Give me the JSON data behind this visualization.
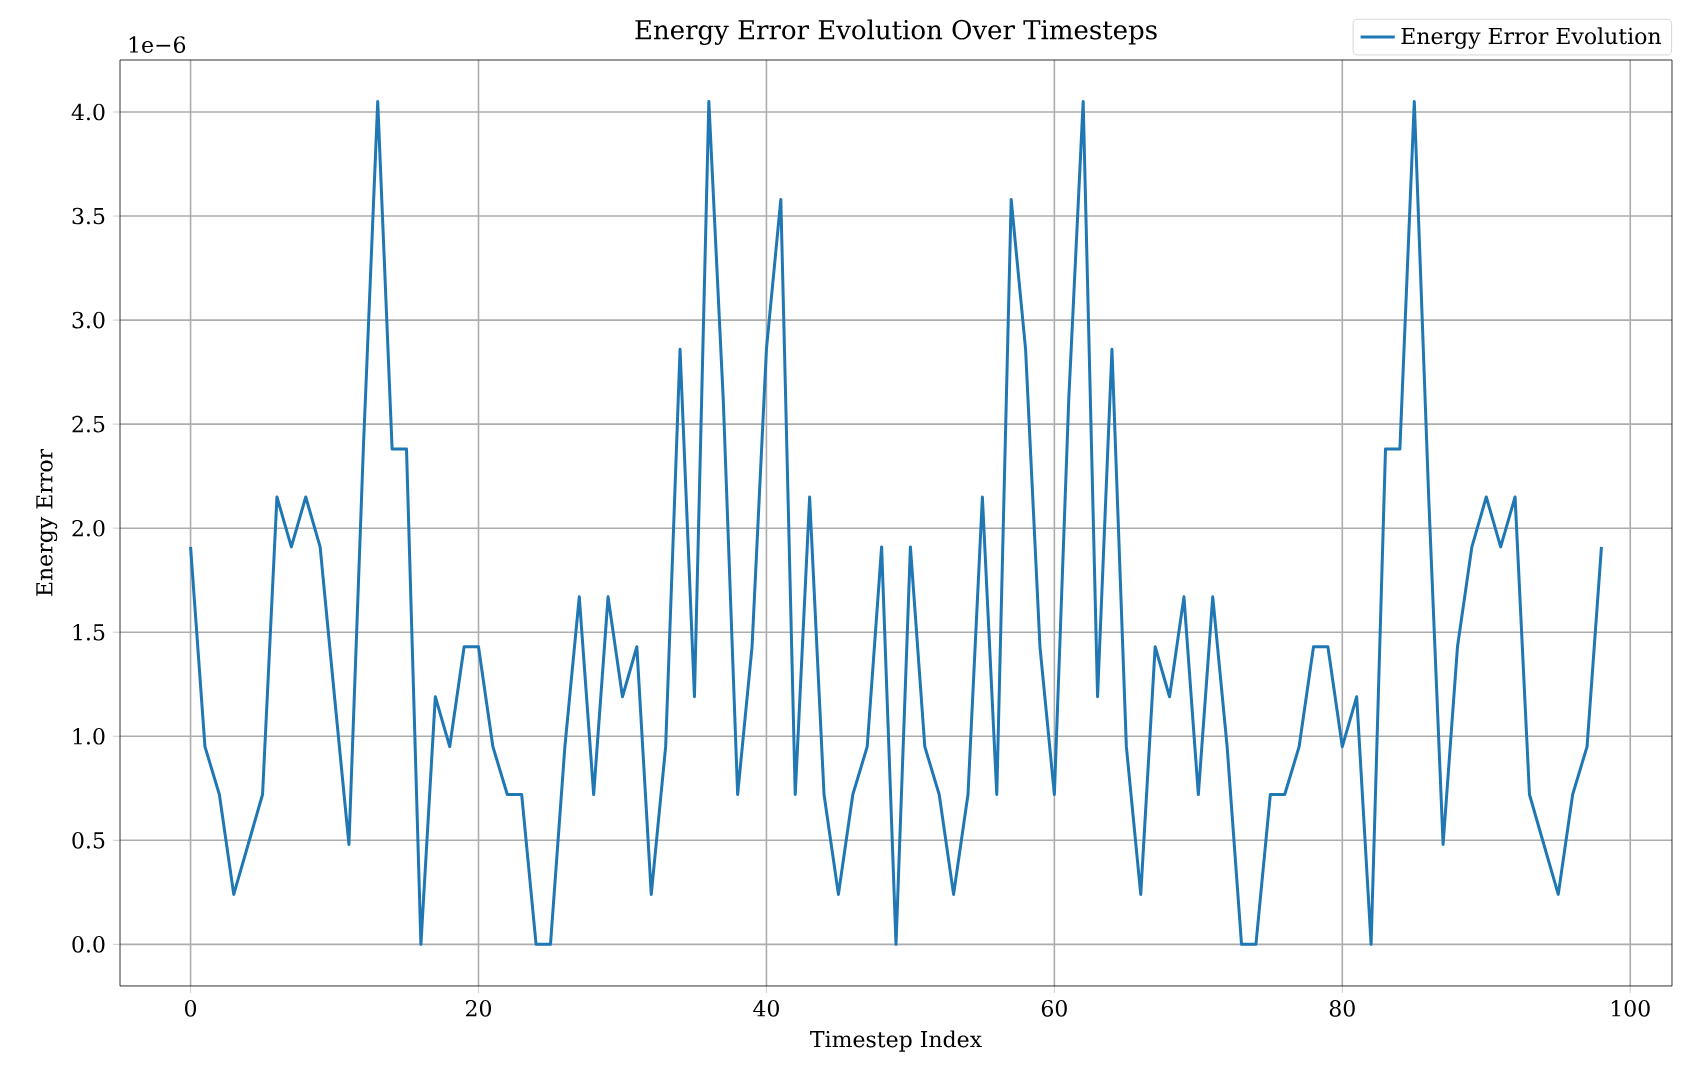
{
  "chart_data": {
    "type": "line",
    "title": "Energy Error Evolution Over Timesteps",
    "xlabel": "Timestep Index",
    "ylabel": "Energy Error",
    "annotations": [
      "1e−6"
    ],
    "x": [
      0,
      1,
      2,
      3,
      4,
      5,
      6,
      7,
      8,
      9,
      10,
      11,
      12,
      13,
      14,
      15,
      16,
      17,
      18,
      19,
      20,
      21,
      22,
      23,
      24,
      25,
      26,
      27,
      28,
      29,
      30,
      31,
      32,
      33,
      34,
      35,
      36,
      37,
      38,
      39,
      40,
      41,
      42,
      43,
      44,
      45,
      46,
      47,
      48,
      49,
      50,
      51,
      52,
      53,
      54,
      55,
      56,
      57,
      58,
      59,
      60,
      61,
      62,
      63,
      64,
      65,
      66,
      67,
      68,
      69,
      70,
      71,
      72,
      73,
      74,
      75,
      76,
      77,
      78,
      79,
      80,
      81,
      82,
      83,
      84,
      85,
      86,
      87,
      88,
      89,
      90,
      91,
      92,
      93,
      94,
      95,
      96,
      97,
      98
    ],
    "series": [
      {
        "name": "Energy Error Evolution",
        "color": "#1f77b4",
        "values": [
          1.91,
          0.95,
          0.72,
          0.24,
          0.48,
          0.72,
          2.15,
          1.91,
          2.15,
          1.91,
          1.19,
          0.48,
          2.38,
          4.05,
          2.38,
          2.38,
          0,
          1.19,
          0.95,
          1.43,
          1.43,
          0.95,
          0.72,
          0.72,
          0,
          0,
          0.95,
          1.67,
          0.72,
          1.67,
          1.19,
          1.43,
          0.24,
          0.95,
          2.86,
          1.19,
          4.05,
          2.62,
          0.72,
          1.43,
          2.86,
          3.58,
          0.72,
          2.15,
          0.72,
          0.24,
          0.72,
          0.95,
          1.91,
          0,
          1.91,
          0.95,
          0.72,
          0.24,
          0.72,
          2.15,
          0.72,
          3.58,
          2.86,
          1.43,
          0.72,
          2.62,
          4.05,
          1.19,
          2.86,
          0.95,
          0.24,
          1.43,
          1.19,
          1.67,
          0.72,
          1.67,
          0.95,
          0,
          0,
          0.72,
          0.72,
          0.95,
          1.43,
          1.43,
          0.95,
          1.19,
          0,
          2.38,
          2.38,
          4.05,
          2.15,
          0.48,
          1.43,
          1.91,
          2.15,
          1.91,
          2.15,
          0.72,
          0.48,
          0.24,
          0.72,
          0.95,
          1.91
        ]
      }
    ],
    "xlim": [
      -4.9,
      102.9
    ],
    "ylim": [
      -0.2,
      4.25
    ],
    "xticks": [
      0,
      20,
      40,
      60,
      80,
      100
    ],
    "yticks": [
      {
        "value": 0,
        "label": "0.0"
      },
      {
        "value": 0.5,
        "label": "0.5"
      },
      {
        "value": 1,
        "label": "1.0"
      },
      {
        "value": 1.5,
        "label": "1.5"
      },
      {
        "value": 2,
        "label": "2.0"
      },
      {
        "value": 2.5,
        "label": "2.5"
      },
      {
        "value": 3,
        "label": "3.0"
      },
      {
        "value": 3.5,
        "label": "3.5"
      },
      {
        "value": 4,
        "label": "4.0"
      }
    ],
    "grid": true,
    "legend": "top right",
    "marker": "none",
    "line_style": "solid"
  }
}
